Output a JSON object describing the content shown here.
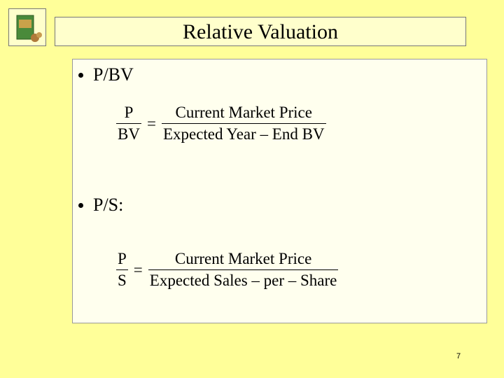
{
  "header": {
    "title": "Relative Valuation"
  },
  "bullets": [
    {
      "label": "P/BV",
      "formula": {
        "lhs": {
          "numerator": "P",
          "denominator": "BV"
        },
        "equals": "=",
        "rhs": {
          "numerator": "Current Market Price",
          "denominator": "Expected Year – End BV"
        }
      }
    },
    {
      "label": "P/S:",
      "formula": {
        "lhs": {
          "numerator": "P",
          "denominator": "S"
        },
        "equals": "=",
        "rhs": {
          "numerator": "Current Market Price",
          "denominator": "Expected Sales – per – Share"
        }
      }
    }
  ],
  "footer": {
    "page_number": "7"
  }
}
